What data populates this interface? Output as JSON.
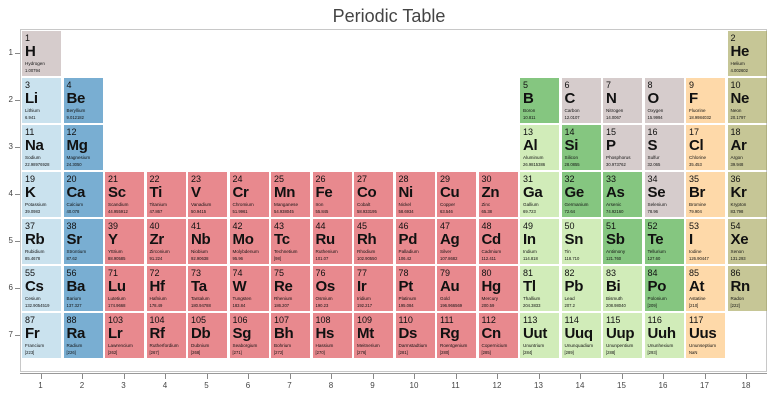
{
  "title": "Periodic Table",
  "chart_data": {
    "type": "heatmap",
    "title": "Periodic Table",
    "x_ticks": [
      "1",
      "2",
      "3",
      "4",
      "5",
      "6",
      "7",
      "8",
      "9",
      "10",
      "11",
      "12",
      "13",
      "14",
      "15",
      "16",
      "17",
      "18"
    ],
    "y_ticks": [
      "1",
      "2",
      "3",
      "4",
      "5",
      "6",
      "7"
    ],
    "colors": {
      "alkali metal": "#a6cee3",
      "alkaline earth metal": "#1f78b4",
      "transition metal": "#d93b43",
      "metal": "#b2df8a",
      "metalloid": "#33a02c",
      "nonmetal": "#bbaaaa",
      "halogen": "#fdbf6f",
      "noble gas": "#a0a050"
    },
    "elements": [
      {
        "n": 1,
        "sym": "H",
        "name": "Hydrogen",
        "mass": "1.00794",
        "g": 1,
        "p": 1,
        "type": "nonmetal"
      },
      {
        "n": 2,
        "sym": "He",
        "name": "Helium",
        "mass": "4.002602",
        "g": 18,
        "p": 1,
        "type": "noble gas"
      },
      {
        "n": 3,
        "sym": "Li",
        "name": "Lithium",
        "mass": "6.941",
        "g": 1,
        "p": 2,
        "type": "alkali metal"
      },
      {
        "n": 4,
        "sym": "Be",
        "name": "Beryllium",
        "mass": "9.012182",
        "g": 2,
        "p": 2,
        "type": "alkaline earth metal"
      },
      {
        "n": 5,
        "sym": "B",
        "name": "Boron",
        "mass": "10.811",
        "g": 13,
        "p": 2,
        "type": "metalloid"
      },
      {
        "n": 6,
        "sym": "C",
        "name": "Carbon",
        "mass": "12.0107",
        "g": 14,
        "p": 2,
        "type": "nonmetal"
      },
      {
        "n": 7,
        "sym": "N",
        "name": "Nitrogen",
        "mass": "14.0067",
        "g": 15,
        "p": 2,
        "type": "nonmetal"
      },
      {
        "n": 8,
        "sym": "O",
        "name": "Oxygen",
        "mass": "15.9994",
        "g": 16,
        "p": 2,
        "type": "nonmetal"
      },
      {
        "n": 9,
        "sym": "F",
        "name": "Fluorine",
        "mass": "18.9984032",
        "g": 17,
        "p": 2,
        "type": "halogen"
      },
      {
        "n": 10,
        "sym": "Ne",
        "name": "Neon",
        "mass": "20.1797",
        "g": 18,
        "p": 2,
        "type": "noble gas"
      },
      {
        "n": 11,
        "sym": "Na",
        "name": "Sodium",
        "mass": "22.98976928",
        "g": 1,
        "p": 3,
        "type": "alkali metal"
      },
      {
        "n": 12,
        "sym": "Mg",
        "name": "Magnesium",
        "mass": "24.3050",
        "g": 2,
        "p": 3,
        "type": "alkaline earth metal"
      },
      {
        "n": 13,
        "sym": "Al",
        "name": "Aluminum",
        "mass": "26.9815386",
        "g": 13,
        "p": 3,
        "type": "metal"
      },
      {
        "n": 14,
        "sym": "Si",
        "name": "Silicon",
        "mass": "28.0855",
        "g": 14,
        "p": 3,
        "type": "metalloid"
      },
      {
        "n": 15,
        "sym": "P",
        "name": "Phosphorus",
        "mass": "30.973762",
        "g": 15,
        "p": 3,
        "type": "nonmetal"
      },
      {
        "n": 16,
        "sym": "S",
        "name": "Sulfur",
        "mass": "32.065",
        "g": 16,
        "p": 3,
        "type": "nonmetal"
      },
      {
        "n": 17,
        "sym": "Cl",
        "name": "Chlorine",
        "mass": "35.453",
        "g": 17,
        "p": 3,
        "type": "halogen"
      },
      {
        "n": 18,
        "sym": "Ar",
        "name": "Argon",
        "mass": "39.948",
        "g": 18,
        "p": 3,
        "type": "noble gas"
      },
      {
        "n": 19,
        "sym": "K",
        "name": "Potassium",
        "mass": "39.0983",
        "g": 1,
        "p": 4,
        "type": "alkali metal"
      },
      {
        "n": 20,
        "sym": "Ca",
        "name": "Calcium",
        "mass": "40.078",
        "g": 2,
        "p": 4,
        "type": "alkaline earth metal"
      },
      {
        "n": 21,
        "sym": "Sc",
        "name": "Scandium",
        "mass": "44.955912",
        "g": 3,
        "p": 4,
        "type": "transition metal"
      },
      {
        "n": 22,
        "sym": "Ti",
        "name": "Titanium",
        "mass": "47.867",
        "g": 4,
        "p": 4,
        "type": "transition metal"
      },
      {
        "n": 23,
        "sym": "V",
        "name": "Vanadium",
        "mass": "50.9415",
        "g": 5,
        "p": 4,
        "type": "transition metal"
      },
      {
        "n": 24,
        "sym": "Cr",
        "name": "Chromium",
        "mass": "51.9961",
        "g": 6,
        "p": 4,
        "type": "transition metal"
      },
      {
        "n": 25,
        "sym": "Mn",
        "name": "Manganese",
        "mass": "54.938045",
        "g": 7,
        "p": 4,
        "type": "transition metal"
      },
      {
        "n": 26,
        "sym": "Fe",
        "name": "Iron",
        "mass": "55.845",
        "g": 8,
        "p": 4,
        "type": "transition metal"
      },
      {
        "n": 27,
        "sym": "Co",
        "name": "Cobalt",
        "mass": "58.933195",
        "g": 9,
        "p": 4,
        "type": "transition metal"
      },
      {
        "n": 28,
        "sym": "Ni",
        "name": "Nickel",
        "mass": "58.6934",
        "g": 10,
        "p": 4,
        "type": "transition metal"
      },
      {
        "n": 29,
        "sym": "Cu",
        "name": "Copper",
        "mass": "63.546",
        "g": 11,
        "p": 4,
        "type": "transition metal"
      },
      {
        "n": 30,
        "sym": "Zn",
        "name": "Zinc",
        "mass": "65.38",
        "g": 12,
        "p": 4,
        "type": "transition metal"
      },
      {
        "n": 31,
        "sym": "Ga",
        "name": "Gallium",
        "mass": "69.723",
        "g": 13,
        "p": 4,
        "type": "metal"
      },
      {
        "n": 32,
        "sym": "Ge",
        "name": "Germanium",
        "mass": "72.64",
        "g": 14,
        "p": 4,
        "type": "metalloid"
      },
      {
        "n": 33,
        "sym": "As",
        "name": "Arsenic",
        "mass": "74.92160",
        "g": 15,
        "p": 4,
        "type": "metalloid"
      },
      {
        "n": 34,
        "sym": "Se",
        "name": "Selenium",
        "mass": "78.96",
        "g": 16,
        "p": 4,
        "type": "nonmetal"
      },
      {
        "n": 35,
        "sym": "Br",
        "name": "Bromine",
        "mass": "79.904",
        "g": 17,
        "p": 4,
        "type": "halogen"
      },
      {
        "n": 36,
        "sym": "Kr",
        "name": "Krypton",
        "mass": "83.798",
        "g": 18,
        "p": 4,
        "type": "noble gas"
      },
      {
        "n": 37,
        "sym": "Rb",
        "name": "Rubidium",
        "mass": "85.4678",
        "g": 1,
        "p": 5,
        "type": "alkali metal"
      },
      {
        "n": 38,
        "sym": "Sr",
        "name": "Strontium",
        "mass": "87.62",
        "g": 2,
        "p": 5,
        "type": "alkaline earth metal"
      },
      {
        "n": 39,
        "sym": "Y",
        "name": "Yttrium",
        "mass": "88.90585",
        "g": 3,
        "p": 5,
        "type": "transition metal"
      },
      {
        "n": 40,
        "sym": "Zr",
        "name": "Zirconium",
        "mass": "91.224",
        "g": 4,
        "p": 5,
        "type": "transition metal"
      },
      {
        "n": 41,
        "sym": "Nb",
        "name": "Niobium",
        "mass": "92.90638",
        "g": 5,
        "p": 5,
        "type": "transition metal"
      },
      {
        "n": 42,
        "sym": "Mo",
        "name": "Molybdenum",
        "mass": "95.96",
        "g": 6,
        "p": 5,
        "type": "transition metal"
      },
      {
        "n": 43,
        "sym": "Tc",
        "name": "Technetium",
        "mass": "[98]",
        "g": 7,
        "p": 5,
        "type": "transition metal"
      },
      {
        "n": 44,
        "sym": "Ru",
        "name": "Ruthenium",
        "mass": "101.07",
        "g": 8,
        "p": 5,
        "type": "transition metal"
      },
      {
        "n": 45,
        "sym": "Rh",
        "name": "Rhodium",
        "mass": "102.90550",
        "g": 9,
        "p": 5,
        "type": "transition metal"
      },
      {
        "n": 46,
        "sym": "Pd",
        "name": "Palladium",
        "mass": "106.42",
        "g": 10,
        "p": 5,
        "type": "transition metal"
      },
      {
        "n": 47,
        "sym": "Ag",
        "name": "Silver",
        "mass": "107.8682",
        "g": 11,
        "p": 5,
        "type": "transition metal"
      },
      {
        "n": 48,
        "sym": "Cd",
        "name": "Cadmium",
        "mass": "112.411",
        "g": 12,
        "p": 5,
        "type": "transition metal"
      },
      {
        "n": 49,
        "sym": "In",
        "name": "Indium",
        "mass": "114.818",
        "g": 13,
        "p": 5,
        "type": "metal"
      },
      {
        "n": 50,
        "sym": "Sn",
        "name": "Tin",
        "mass": "118.710",
        "g": 14,
        "p": 5,
        "type": "metal"
      },
      {
        "n": 51,
        "sym": "Sb",
        "name": "Antimony",
        "mass": "121.760",
        "g": 15,
        "p": 5,
        "type": "metalloid"
      },
      {
        "n": 52,
        "sym": "Te",
        "name": "Tellurium",
        "mass": "127.60",
        "g": 16,
        "p": 5,
        "type": "metalloid"
      },
      {
        "n": 53,
        "sym": "I",
        "name": "Iodine",
        "mass": "126.90447",
        "g": 17,
        "p": 5,
        "type": "halogen"
      },
      {
        "n": 54,
        "sym": "Xe",
        "name": "Xenon",
        "mass": "131.293",
        "g": 18,
        "p": 5,
        "type": "noble gas"
      },
      {
        "n": 55,
        "sym": "Cs",
        "name": "Cesium",
        "mass": "132.9054519",
        "g": 1,
        "p": 6,
        "type": "alkali metal"
      },
      {
        "n": 56,
        "sym": "Ba",
        "name": "Barium",
        "mass": "137.327",
        "g": 2,
        "p": 6,
        "type": "alkaline earth metal"
      },
      {
        "n": 71,
        "sym": "Lu",
        "name": "Lutetium",
        "mass": "174.9668",
        "g": 3,
        "p": 6,
        "type": "transition metal"
      },
      {
        "n": 72,
        "sym": "Hf",
        "name": "Hafnium",
        "mass": "178.49",
        "g": 4,
        "p": 6,
        "type": "transition metal"
      },
      {
        "n": 73,
        "sym": "Ta",
        "name": "Tantalum",
        "mass": "180.94788",
        "g": 5,
        "p": 6,
        "type": "transition metal"
      },
      {
        "n": 74,
        "sym": "W",
        "name": "Tungsten",
        "mass": "183.84",
        "g": 6,
        "p": 6,
        "type": "transition metal"
      },
      {
        "n": 75,
        "sym": "Re",
        "name": "Rhenium",
        "mass": "186.207",
        "g": 7,
        "p": 6,
        "type": "transition metal"
      },
      {
        "n": 76,
        "sym": "Os",
        "name": "Osmium",
        "mass": "190.23",
        "g": 8,
        "p": 6,
        "type": "transition metal"
      },
      {
        "n": 77,
        "sym": "Ir",
        "name": "Iridium",
        "mass": "192.217",
        "g": 9,
        "p": 6,
        "type": "transition metal"
      },
      {
        "n": 78,
        "sym": "Pt",
        "name": "Platinum",
        "mass": "195.084",
        "g": 10,
        "p": 6,
        "type": "transition metal"
      },
      {
        "n": 79,
        "sym": "Au",
        "name": "Gold",
        "mass": "196.966569",
        "g": 11,
        "p": 6,
        "type": "transition metal"
      },
      {
        "n": 80,
        "sym": "Hg",
        "name": "Mercury",
        "mass": "200.59",
        "g": 12,
        "p": 6,
        "type": "transition metal"
      },
      {
        "n": 81,
        "sym": "Tl",
        "name": "Thallium",
        "mass": "204.3833",
        "g": 13,
        "p": 6,
        "type": "metal"
      },
      {
        "n": 82,
        "sym": "Pb",
        "name": "Lead",
        "mass": "207.2",
        "g": 14,
        "p": 6,
        "type": "metal"
      },
      {
        "n": 83,
        "sym": "Bi",
        "name": "Bismuth",
        "mass": "208.98040",
        "g": 15,
        "p": 6,
        "type": "metal"
      },
      {
        "n": 84,
        "sym": "Po",
        "name": "Polonium",
        "mass": "[209]",
        "g": 16,
        "p": 6,
        "type": "metalloid"
      },
      {
        "n": 85,
        "sym": "At",
        "name": "Astatine",
        "mass": "[210]",
        "g": 17,
        "p": 6,
        "type": "halogen"
      },
      {
        "n": 86,
        "sym": "Rn",
        "name": "Radon",
        "mass": "[222]",
        "g": 18,
        "p": 6,
        "type": "noble gas"
      },
      {
        "n": 87,
        "sym": "Fr",
        "name": "Francium",
        "mass": "[223]",
        "g": 1,
        "p": 7,
        "type": "alkali metal"
      },
      {
        "n": 88,
        "sym": "Ra",
        "name": "Radium",
        "mass": "[226]",
        "g": 2,
        "p": 7,
        "type": "alkaline earth metal"
      },
      {
        "n": 103,
        "sym": "Lr",
        "name": "Lawrencium",
        "mass": "[262]",
        "g": 3,
        "p": 7,
        "type": "transition metal"
      },
      {
        "n": 104,
        "sym": "Rf",
        "name": "Rutherfordium",
        "mass": "[267]",
        "g": 4,
        "p": 7,
        "type": "transition metal"
      },
      {
        "n": 105,
        "sym": "Db",
        "name": "Dubnium",
        "mass": "[268]",
        "g": 5,
        "p": 7,
        "type": "transition metal"
      },
      {
        "n": 106,
        "sym": "Sg",
        "name": "Seaborgium",
        "mass": "[271]",
        "g": 6,
        "p": 7,
        "type": "transition metal"
      },
      {
        "n": 107,
        "sym": "Bh",
        "name": "Bohrium",
        "mass": "[272]",
        "g": 7,
        "p": 7,
        "type": "transition metal"
      },
      {
        "n": 108,
        "sym": "Hs",
        "name": "Hassium",
        "mass": "[270]",
        "g": 8,
        "p": 7,
        "type": "transition metal"
      },
      {
        "n": 109,
        "sym": "Mt",
        "name": "Meitnerium",
        "mass": "[276]",
        "g": 9,
        "p": 7,
        "type": "transition metal"
      },
      {
        "n": 110,
        "sym": "Ds",
        "name": "Darmstadtium",
        "mass": "[281]",
        "g": 10,
        "p": 7,
        "type": "transition metal"
      },
      {
        "n": 111,
        "sym": "Rg",
        "name": "Roentgenium",
        "mass": "[280]",
        "g": 11,
        "p": 7,
        "type": "transition metal"
      },
      {
        "n": 112,
        "sym": "Cn",
        "name": "Copernicium",
        "mass": "[285]",
        "g": 12,
        "p": 7,
        "type": "transition metal"
      },
      {
        "n": 113,
        "sym": "Uut",
        "name": "Ununtrium",
        "mass": "[284]",
        "g": 13,
        "p": 7,
        "type": "metal"
      },
      {
        "n": 114,
        "sym": "Uuq",
        "name": "Ununquadium",
        "mass": "[289]",
        "g": 14,
        "p": 7,
        "type": "metal"
      },
      {
        "n": 115,
        "sym": "Uup",
        "name": "Ununpentium",
        "mass": "[288]",
        "g": 15,
        "p": 7,
        "type": "metal"
      },
      {
        "n": 116,
        "sym": "Uuh",
        "name": "Ununhexium",
        "mass": "[293]",
        "g": 16,
        "p": 7,
        "type": "metal"
      },
      {
        "n": 117,
        "sym": "Uus",
        "name": "Ununseptium",
        "mass": "NaN",
        "g": 17,
        "p": 7,
        "type": "halogen"
      }
    ]
  }
}
